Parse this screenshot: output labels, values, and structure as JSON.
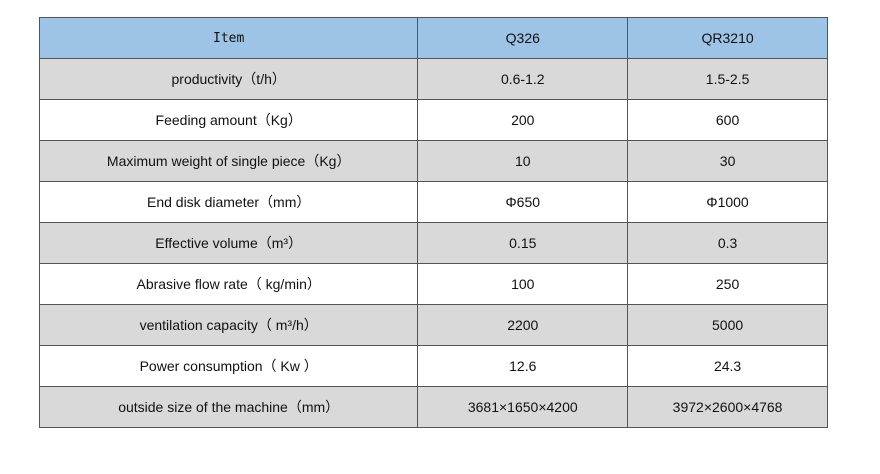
{
  "table": {
    "header": [
      "Item",
      "Q326",
      "QR3210"
    ],
    "rows": [
      [
        "productivity（t/h）",
        "0.6-1.2",
        "1.5-2.5"
      ],
      [
        "Feeding amount（Kg）",
        "200",
        "600"
      ],
      [
        "Maximum weight of single piece（Kg）",
        "10",
        "30"
      ],
      [
        "End disk diameter（mm）",
        "Φ650",
        "Φ1000"
      ],
      [
        "Effective volume（m³）",
        "0.15",
        "0.3"
      ],
      [
        "Abrasive flow rate（ kg/min）",
        "100",
        "250"
      ],
      [
        "ventilation capacity（ m³/h）",
        "2200",
        "5000"
      ],
      [
        "Power consumption（ Kw ）",
        "12.6",
        "24.3"
      ],
      [
        "outside size of the machine（mm）",
        "3681×1650×4200",
        "3972×2600×4768"
      ]
    ]
  }
}
